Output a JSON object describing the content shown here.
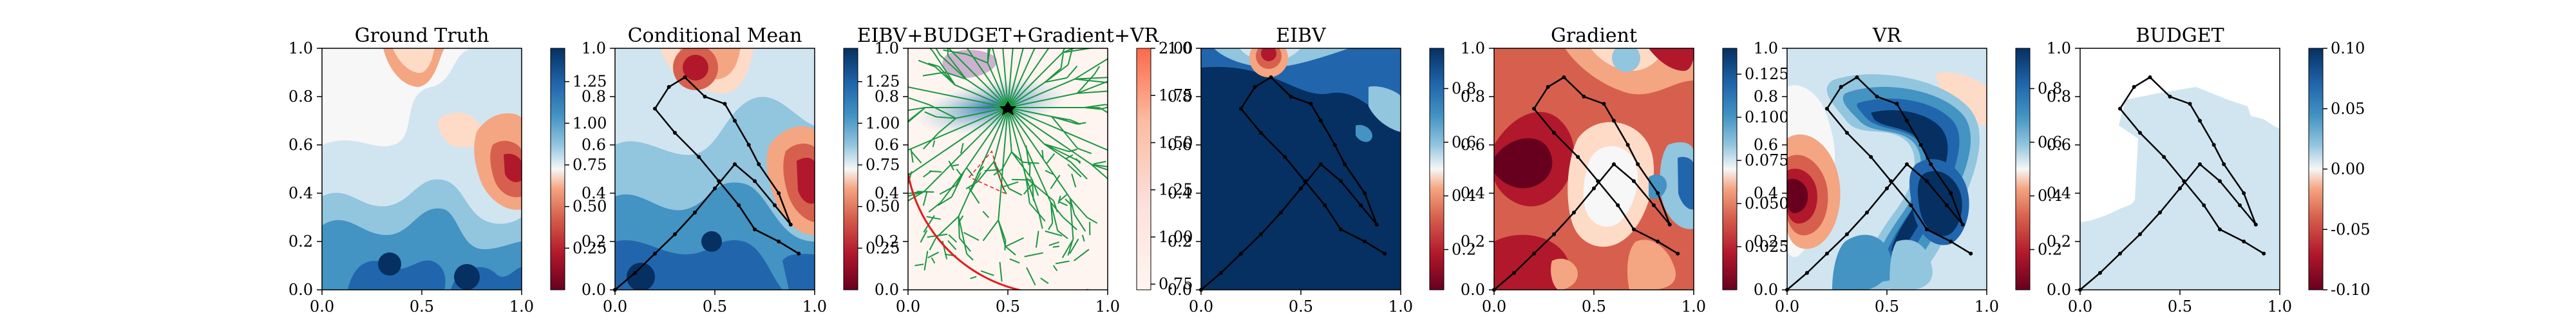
{
  "chart_data": [
    {
      "type": "heatmap",
      "title": "Ground Truth",
      "xlim": [
        0,
        1
      ],
      "ylim": [
        0,
        1
      ],
      "xticks": [
        "0.0",
        "0.5",
        "1.0"
      ],
      "yticks": [
        "0.0",
        "0.2",
        "0.4",
        "0.6",
        "0.8",
        "1.0"
      ],
      "colorbar": {
        "range": [
          0.0,
          1.45
        ],
        "ticks": [
          "0.25",
          "0.50",
          "0.75",
          "1.00",
          "1.25"
        ],
        "colormap": "RdBu"
      },
      "path": []
    },
    {
      "type": "heatmap",
      "title": "Conditional Mean",
      "xlim": [
        0,
        1
      ],
      "ylim": [
        0,
        1
      ],
      "xticks": [
        "0.0",
        "0.5",
        "1.0"
      ],
      "yticks": [
        "0.0",
        "0.2",
        "0.4",
        "0.6",
        "0.8",
        "1.0"
      ],
      "colorbar": {
        "range": [
          0.0,
          1.45
        ],
        "ticks": [
          "0.25",
          "0.50",
          "0.75",
          "1.00",
          "1.25"
        ],
        "colormap": "RdBu"
      },
      "path": [
        [
          0.0,
          0.0
        ],
        [
          0.1,
          0.07
        ],
        [
          0.2,
          0.15
        ],
        [
          0.3,
          0.23
        ],
        [
          0.4,
          0.32
        ],
        [
          0.5,
          0.42
        ],
        [
          0.6,
          0.52
        ],
        [
          0.7,
          0.45
        ],
        [
          0.8,
          0.35
        ],
        [
          0.88,
          0.27
        ],
        [
          0.82,
          0.4
        ],
        [
          0.72,
          0.52
        ],
        [
          0.67,
          0.6
        ],
        [
          0.6,
          0.7
        ],
        [
          0.55,
          0.77
        ],
        [
          0.45,
          0.8
        ],
        [
          0.35,
          0.88
        ],
        [
          0.27,
          0.84
        ],
        [
          0.2,
          0.75
        ],
        [
          0.3,
          0.65
        ],
        [
          0.42,
          0.55
        ],
        [
          0.52,
          0.45
        ],
        [
          0.62,
          0.35
        ],
        [
          0.7,
          0.25
        ],
        [
          0.82,
          0.2
        ],
        [
          0.92,
          0.15
        ]
      ]
    },
    {
      "type": "heatmap",
      "title": "EIBV+BUDGET+Gradient+VR",
      "xlim": [
        0,
        1
      ],
      "ylim": [
        0,
        1
      ],
      "xticks": [
        "0.0",
        "0.5",
        "1.0"
      ],
      "yticks": [
        "0.0",
        "0.2",
        "0.4",
        "0.6",
        "0.8",
        "1.0"
      ],
      "colorbar": {
        "range": [
          0.72,
          2.0
        ],
        "ticks": [
          "0.75",
          "1.00",
          "1.25",
          "1.50",
          "1.75",
          "2.00"
        ],
        "colormap": "Reds"
      },
      "path": []
    },
    {
      "type": "heatmap",
      "title": "EIBV",
      "xlim": [
        0,
        1
      ],
      "ylim": [
        0,
        1
      ],
      "xticks": [
        "0.0",
        "0.5",
        "1.0"
      ],
      "yticks": [
        "0.0",
        "0.2",
        "0.4",
        "0.6",
        "0.8",
        "1.0"
      ],
      "colorbar": {
        "range": [
          0.05,
          0.95
        ],
        "ticks": [
          "0.2",
          "0.4",
          "0.6",
          "0.8"
        ],
        "colormap": "RdBu"
      },
      "path": [
        [
          0.0,
          0.0
        ],
        [
          0.1,
          0.07
        ],
        [
          0.2,
          0.15
        ],
        [
          0.3,
          0.23
        ],
        [
          0.4,
          0.32
        ],
        [
          0.5,
          0.42
        ],
        [
          0.6,
          0.52
        ],
        [
          0.7,
          0.45
        ],
        [
          0.8,
          0.35
        ],
        [
          0.88,
          0.27
        ],
        [
          0.82,
          0.4
        ],
        [
          0.72,
          0.52
        ],
        [
          0.67,
          0.6
        ],
        [
          0.6,
          0.7
        ],
        [
          0.55,
          0.77
        ],
        [
          0.45,
          0.8
        ],
        [
          0.35,
          0.88
        ],
        [
          0.27,
          0.84
        ],
        [
          0.2,
          0.75
        ],
        [
          0.3,
          0.65
        ],
        [
          0.42,
          0.55
        ],
        [
          0.52,
          0.45
        ],
        [
          0.62,
          0.35
        ],
        [
          0.7,
          0.25
        ],
        [
          0.82,
          0.2
        ],
        [
          0.92,
          0.15
        ]
      ]
    },
    {
      "type": "heatmap",
      "title": "Gradient",
      "xlim": [
        0,
        1
      ],
      "ylim": [
        0,
        1
      ],
      "xticks": [
        "0.0",
        "0.5",
        "1.0"
      ],
      "yticks": [
        "0.0",
        "0.2",
        "0.4",
        "0.6",
        "0.8",
        "1.0"
      ],
      "colorbar": {
        "range": [
          0.0,
          0.14
        ],
        "ticks": [
          "0.025",
          "0.050",
          "0.075",
          "0.100",
          "0.125"
        ],
        "colormap": "RdBu"
      },
      "path": [
        [
          0.0,
          0.0
        ],
        [
          0.1,
          0.07
        ],
        [
          0.2,
          0.15
        ],
        [
          0.3,
          0.23
        ],
        [
          0.4,
          0.32
        ],
        [
          0.5,
          0.42
        ],
        [
          0.6,
          0.52
        ],
        [
          0.7,
          0.45
        ],
        [
          0.8,
          0.35
        ],
        [
          0.88,
          0.27
        ],
        [
          0.82,
          0.4
        ],
        [
          0.72,
          0.52
        ],
        [
          0.67,
          0.6
        ],
        [
          0.6,
          0.7
        ],
        [
          0.55,
          0.77
        ],
        [
          0.45,
          0.8
        ],
        [
          0.35,
          0.88
        ],
        [
          0.27,
          0.84
        ],
        [
          0.2,
          0.75
        ],
        [
          0.3,
          0.65
        ],
        [
          0.42,
          0.55
        ],
        [
          0.52,
          0.45
        ],
        [
          0.62,
          0.35
        ],
        [
          0.7,
          0.25
        ],
        [
          0.82,
          0.2
        ],
        [
          0.92,
          0.15
        ]
      ]
    },
    {
      "type": "heatmap",
      "title": "VR",
      "xlim": [
        0,
        1
      ],
      "ylim": [
        0,
        1
      ],
      "xticks": [
        "0.0",
        "0.5",
        "1.0"
      ],
      "yticks": [
        "0.0",
        "0.2",
        "0.4",
        "0.6",
        "0.8",
        "1.0"
      ],
      "colorbar": {
        "range": [
          0.05,
          0.95
        ],
        "ticks": [
          "0.2",
          "0.4",
          "0.6",
          "0.8"
        ],
        "colormap": "RdBu"
      },
      "path": [
        [
          0.0,
          0.0
        ],
        [
          0.1,
          0.07
        ],
        [
          0.2,
          0.15
        ],
        [
          0.3,
          0.23
        ],
        [
          0.4,
          0.32
        ],
        [
          0.5,
          0.42
        ],
        [
          0.6,
          0.52
        ],
        [
          0.7,
          0.45
        ],
        [
          0.8,
          0.35
        ],
        [
          0.88,
          0.27
        ],
        [
          0.82,
          0.4
        ],
        [
          0.72,
          0.52
        ],
        [
          0.67,
          0.6
        ],
        [
          0.6,
          0.7
        ],
        [
          0.55,
          0.77
        ],
        [
          0.45,
          0.8
        ],
        [
          0.35,
          0.88
        ],
        [
          0.27,
          0.84
        ],
        [
          0.2,
          0.75
        ],
        [
          0.3,
          0.65
        ],
        [
          0.42,
          0.55
        ],
        [
          0.52,
          0.45
        ],
        [
          0.62,
          0.35
        ],
        [
          0.7,
          0.25
        ],
        [
          0.82,
          0.2
        ],
        [
          0.92,
          0.15
        ]
      ]
    },
    {
      "type": "heatmap",
      "title": "BUDGET",
      "xlim": [
        0,
        1
      ],
      "ylim": [
        0,
        1
      ],
      "xticks": [
        "0.0",
        "0.5",
        "1.0"
      ],
      "yticks": [
        "0.0",
        "0.2",
        "0.4",
        "0.6",
        "0.8",
        "1.0"
      ],
      "colorbar": {
        "range": [
          -0.1,
          0.1
        ],
        "ticks": [
          "-0.10",
          "-0.05",
          "0.00",
          "0.05",
          "0.10"
        ],
        "colormap": "RdBu"
      },
      "path": [
        [
          0.0,
          0.0
        ],
        [
          0.1,
          0.07
        ],
        [
          0.2,
          0.15
        ],
        [
          0.3,
          0.23
        ],
        [
          0.4,
          0.32
        ],
        [
          0.5,
          0.42
        ],
        [
          0.6,
          0.52
        ],
        [
          0.7,
          0.45
        ],
        [
          0.8,
          0.35
        ],
        [
          0.88,
          0.27
        ],
        [
          0.82,
          0.4
        ],
        [
          0.72,
          0.52
        ],
        [
          0.67,
          0.6
        ],
        [
          0.6,
          0.7
        ],
        [
          0.55,
          0.77
        ],
        [
          0.45,
          0.8
        ],
        [
          0.35,
          0.88
        ],
        [
          0.27,
          0.84
        ],
        [
          0.2,
          0.75
        ],
        [
          0.3,
          0.65
        ],
        [
          0.42,
          0.55
        ],
        [
          0.52,
          0.45
        ],
        [
          0.62,
          0.35
        ],
        [
          0.7,
          0.25
        ],
        [
          0.82,
          0.2
        ],
        [
          0.92,
          0.15
        ]
      ]
    }
  ]
}
